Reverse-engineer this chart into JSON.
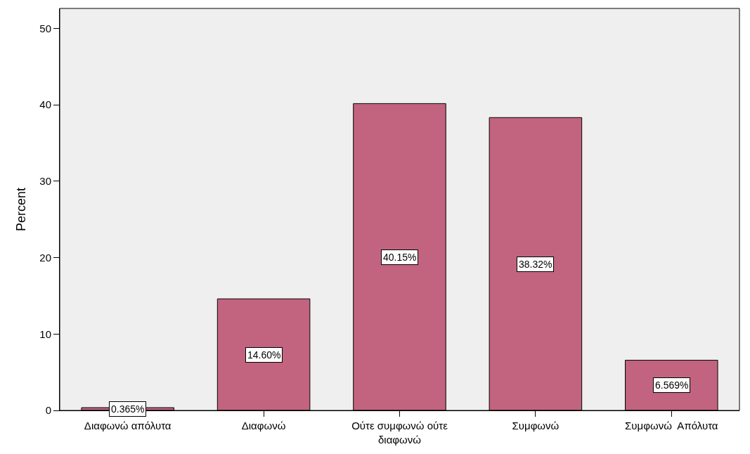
{
  "chart_data": {
    "type": "bar",
    "ylabel": "Percent",
    "categories": [
      "Διαφωνώ απόλυτα",
      "Διαφωνώ",
      "Ούτε συμφωνώ ούτε διαφωνώ",
      "Συμφωνώ",
      "Συμφωνώ  Απόλυτα"
    ],
    "values": [
      0.365,
      14.6,
      40.15,
      38.32,
      6.569
    ],
    "value_labels": [
      "0.365%",
      "14.60%",
      "40.15%",
      "38.32%",
      "6.569%"
    ],
    "color": "#c2647f",
    "ylim": [
      0,
      52.6
    ],
    "yticks": [
      0,
      10,
      20,
      30,
      40,
      50
    ],
    "grid": false,
    "legend": false
  }
}
